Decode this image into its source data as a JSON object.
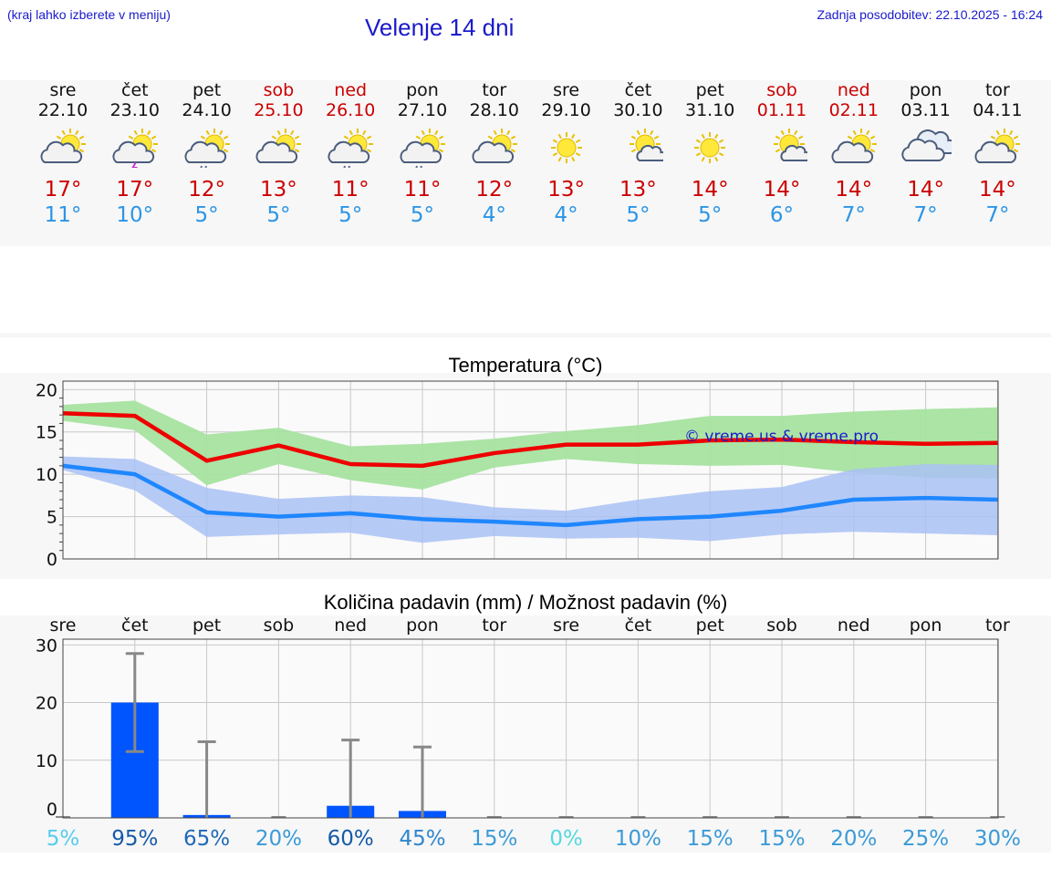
{
  "header": {
    "hint": "(kraj lahko izberete v meniju)",
    "title": "Velenje 14 dni",
    "updated": "Zadnja posodobitev: 22.10.2025 - 16:24"
  },
  "days": [
    {
      "name": "sre",
      "date": "22.10",
      "weekend": false,
      "icon": "partly-cloudy-sun-icon",
      "max": "17°",
      "min": "11°"
    },
    {
      "name": "čet",
      "date": "23.10",
      "weekend": false,
      "icon": "thunderstorm-sun-icon",
      "max": "17°",
      "min": "10°"
    },
    {
      "name": "pet",
      "date": "24.10",
      "weekend": false,
      "icon": "rain-sun-icon",
      "max": "12°",
      "min": "5°"
    },
    {
      "name": "sob",
      "date": "25.10",
      "weekend": true,
      "icon": "partly-cloudy-sun-icon",
      "max": "13°",
      "min": "5°"
    },
    {
      "name": "ned",
      "date": "26.10",
      "weekend": true,
      "icon": "rain-sun-icon",
      "max": "11°",
      "min": "5°"
    },
    {
      "name": "pon",
      "date": "27.10",
      "weekend": false,
      "icon": "rain-sun-icon",
      "max": "11°",
      "min": "5°"
    },
    {
      "name": "tor",
      "date": "28.10",
      "weekend": false,
      "icon": "partly-cloudy-sun-icon",
      "max": "12°",
      "min": "4°"
    },
    {
      "name": "sre",
      "date": "29.10",
      "weekend": false,
      "icon": "sun-icon",
      "max": "13°",
      "min": "4°"
    },
    {
      "name": "čet",
      "date": "30.10",
      "weekend": false,
      "icon": "sun-small-cloud-icon",
      "max": "13°",
      "min": "5°"
    },
    {
      "name": "pet",
      "date": "31.10",
      "weekend": false,
      "icon": "sun-icon",
      "max": "14°",
      "min": "5°"
    },
    {
      "name": "sob",
      "date": "01.11",
      "weekend": true,
      "icon": "sun-small-cloud-icon",
      "max": "14°",
      "min": "6°"
    },
    {
      "name": "ned",
      "date": "02.11",
      "weekend": true,
      "icon": "partly-cloudy-sun-icon",
      "max": "14°",
      "min": "7°"
    },
    {
      "name": "pon",
      "date": "03.11",
      "weekend": false,
      "icon": "cloudy-icon",
      "max": "14°",
      "min": "7°"
    },
    {
      "name": "tor",
      "date": "04.11",
      "weekend": false,
      "icon": "partly-cloudy-sun-icon",
      "max": "14°",
      "min": "7°"
    }
  ],
  "colors": {
    "max": "#cc0000",
    "min": "#2b95e6",
    "maxLine": "#ee0000",
    "minLine": "#1f87ff",
    "maxBand": "#a6e3a0",
    "minBand": "#a9c1f5",
    "bar": "#0055ff",
    "whisker": "#888888"
  },
  "chart_data": [
    {
      "type": "line",
      "title": "Temperatura (°C)",
      "watermark": "© vreme.us & vreme.pro",
      "ylim": [
        0,
        21
      ],
      "yticks": [
        0,
        5,
        10,
        15,
        20
      ],
      "x": [
        0,
        1,
        2,
        3,
        4,
        5,
        6,
        7,
        8,
        9,
        10,
        11,
        12,
        13
      ],
      "series": [
        {
          "name": "max",
          "values": [
            17.2,
            16.9,
            11.6,
            13.4,
            11.2,
            11.0,
            12.5,
            13.5,
            13.5,
            14.0,
            14.1,
            13.8,
            13.6,
            13.7
          ]
        },
        {
          "name": "min",
          "values": [
            11.0,
            10.0,
            5.5,
            5.0,
            5.4,
            4.7,
            4.4,
            4.0,
            4.7,
            5.0,
            5.7,
            7.0,
            7.2,
            7.0
          ]
        }
      ],
      "bands": [
        {
          "name": "max-range",
          "lower": [
            16.3,
            15.2,
            8.7,
            11.2,
            9.3,
            8.2,
            10.8,
            11.8,
            11.2,
            11.0,
            11.1,
            10.2,
            9.6,
            9.5
          ],
          "upper": [
            18.2,
            18.7,
            14.7,
            15.5,
            13.3,
            13.6,
            14.2,
            15.1,
            15.8,
            16.9,
            16.9,
            17.4,
            17.7,
            17.9
          ]
        },
        {
          "name": "min-range",
          "lower": [
            10.5,
            8.1,
            2.6,
            2.9,
            3.1,
            1.9,
            2.7,
            2.4,
            2.5,
            2.1,
            2.9,
            3.2,
            3.0,
            2.8
          ],
          "upper": [
            12.1,
            11.8,
            8.4,
            7.1,
            7.5,
            7.3,
            6.1,
            5.7,
            7.0,
            8.0,
            8.5,
            10.6,
            11.2,
            11.1
          ]
        }
      ]
    },
    {
      "type": "bar",
      "title": "Količina padavin (mm) / Možnost padavin (%)",
      "ylim": [
        0,
        31
      ],
      "yticks": [
        0,
        10,
        20,
        30
      ],
      "categories": [
        "sre",
        "čet",
        "pet",
        "sob",
        "ned",
        "pon",
        "tor",
        "sre",
        "čet",
        "pet",
        "sob",
        "ned",
        "pon",
        "tor"
      ],
      "values": [
        0,
        20,
        0.5,
        0,
        2.1,
        1.2,
        0,
        0,
        0,
        0,
        0,
        0,
        0,
        0
      ],
      "error_low": [
        0,
        11.5,
        0,
        0,
        0,
        0,
        0,
        0,
        0,
        0,
        0,
        0,
        0,
        0
      ],
      "error_high": [
        0,
        28.5,
        13.2,
        0,
        13.5,
        12.3,
        0,
        0,
        0,
        0,
        0,
        0,
        0,
        0
      ],
      "probability": [
        "5%",
        "95%",
        "65%",
        "20%",
        "60%",
        "45%",
        "15%",
        "0%",
        "10%",
        "15%",
        "15%",
        "20%",
        "25%",
        "30%"
      ],
      "probabilityColors": [
        "#55ccee",
        "#155aa8",
        "#1f68b8",
        "#3b9ad8",
        "#155aa8",
        "#2f86cc",
        "#3b9ad8",
        "#55d8e0",
        "#3b9ad8",
        "#3b9ad8",
        "#3b9ad8",
        "#3b9ad8",
        "#3b9ad8",
        "#3b9ad8"
      ]
    }
  ]
}
